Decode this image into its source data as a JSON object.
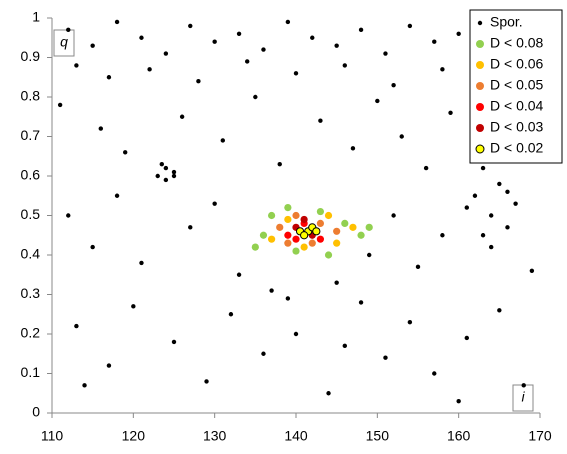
{
  "chart_data": {
    "type": "scatter",
    "x_label": "i",
    "y_label": "q",
    "xlim": [
      110,
      170
    ],
    "xticks": [
      110,
      120,
      130,
      140,
      150,
      160,
      170
    ],
    "ylim": [
      0,
      1
    ],
    "yticks": [
      0,
      0.1,
      0.2,
      0.3,
      0.4,
      0.5,
      0.6,
      0.7,
      0.8,
      0.9,
      1
    ],
    "grid": false,
    "legend": "top-right",
    "series": [
      {
        "name": "Spor.",
        "color": "#000000",
        "edge": "#000000",
        "x": [
          112,
          115,
          118,
          121,
          124,
          127,
          130,
          133,
          136,
          139,
          142,
          145,
          148,
          151,
          154,
          157,
          160,
          163,
          166,
          169,
          113,
          117,
          122,
          128,
          134,
          140,
          146,
          152,
          158,
          164,
          111,
          116,
          119,
          126,
          131,
          135,
          138,
          143,
          147,
          150,
          153,
          156,
          159,
          162,
          167,
          123,
          124,
          125,
          124,
          123.5,
          125,
          162,
          164,
          166,
          163,
          165,
          161,
          167,
          164,
          163,
          166,
          112,
          115,
          118,
          121,
          127,
          130,
          133,
          137,
          145,
          149,
          152,
          155,
          158,
          169,
          113,
          117,
          120,
          125,
          129,
          132,
          136,
          140,
          144,
          148,
          151,
          154,
          157,
          161,
          165,
          168,
          114,
          139,
          146,
          160
        ],
        "y": [
          0.97,
          0.93,
          0.99,
          0.95,
          0.91,
          0.98,
          0.94,
          0.96,
          0.92,
          0.99,
          0.95,
          0.93,
          0.97,
          0.91,
          0.98,
          0.94,
          0.96,
          0.92,
          0.99,
          0.95,
          0.88,
          0.85,
          0.87,
          0.84,
          0.89,
          0.86,
          0.88,
          0.83,
          0.87,
          0.85,
          0.78,
          0.72,
          0.66,
          0.75,
          0.69,
          0.8,
          0.63,
          0.74,
          0.67,
          0.79,
          0.7,
          0.62,
          0.76,
          0.68,
          0.73,
          0.6,
          0.62,
          0.61,
          0.59,
          0.63,
          0.6,
          0.55,
          0.5,
          0.47,
          0.45,
          0.58,
          0.52,
          0.53,
          0.42,
          0.62,
          0.56,
          0.5,
          0.42,
          0.55,
          0.38,
          0.47,
          0.53,
          0.35,
          0.31,
          0.33,
          0.4,
          0.5,
          0.37,
          0.45,
          0.36,
          0.22,
          0.12,
          0.27,
          0.18,
          0.08,
          0.25,
          0.15,
          0.2,
          0.05,
          0.28,
          0.14,
          0.23,
          0.1,
          0.19,
          0.26,
          0.07,
          0.07,
          0.29,
          0.17,
          0.03
        ]
      },
      {
        "name": "D < 0.08",
        "color": "#92d050",
        "edge": "#92d050",
        "x": [
          135,
          137,
          139,
          143,
          146,
          148,
          144,
          140,
          136,
          149
        ],
        "y": [
          0.42,
          0.5,
          0.52,
          0.51,
          0.48,
          0.45,
          0.4,
          0.41,
          0.45,
          0.47
        ]
      },
      {
        "name": "D < 0.06",
        "color": "#ffc000",
        "edge": "#ffc000",
        "x": [
          137,
          139,
          144,
          145,
          141,
          147
        ],
        "y": [
          0.44,
          0.49,
          0.5,
          0.43,
          0.42,
          0.47
        ]
      },
      {
        "name": "D < 0.05",
        "color": "#ed7d31",
        "edge": "#ed7d31",
        "x": [
          138,
          140,
          143,
          145,
          139,
          142
        ],
        "y": [
          0.47,
          0.5,
          0.48,
          0.46,
          0.43,
          0.43
        ]
      },
      {
        "name": "D < 0.04",
        "color": "#ff0000",
        "edge": "#ff0000",
        "x": [
          139,
          141,
          143,
          140
        ],
        "y": [
          0.45,
          0.48,
          0.44,
          0.44
        ]
      },
      {
        "name": "D < 0.03",
        "color": "#c00000",
        "edge": "#c00000",
        "x": [
          141,
          142,
          140
        ],
        "y": [
          0.49,
          0.45,
          0.47
        ]
      },
      {
        "name": "D < 0.02",
        "color": "#ffff00",
        "edge": "#000000",
        "x": [
          140.5,
          141.5,
          142,
          141,
          142.5
        ],
        "y": [
          0.46,
          0.46,
          0.47,
          0.45,
          0.46
        ]
      }
    ]
  }
}
